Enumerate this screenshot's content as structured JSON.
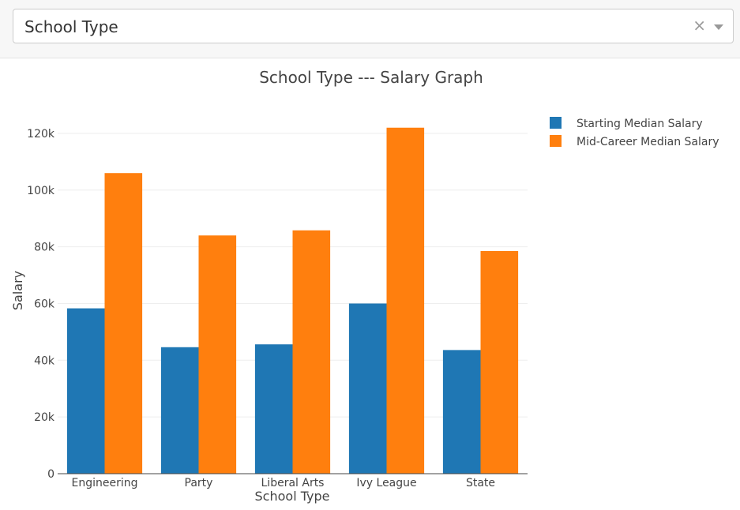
{
  "dropdown": {
    "selected": "School Type"
  },
  "chart_data": {
    "type": "bar",
    "title": "School Type --- Salary Graph",
    "xlabel": "School Type",
    "ylabel": "Salary",
    "categories": [
      "Engineering",
      "Party",
      "Liberal Arts",
      "Ivy League",
      "State"
    ],
    "series": [
      {
        "name": "Starting Median Salary",
        "color": "#1f77b4",
        "values": [
          58300,
          44600,
          45600,
          60000,
          43600
        ]
      },
      {
        "name": "Mid-Career Median Salary",
        "color": "#ff7f0e",
        "values": [
          106000,
          84000,
          85800,
          122000,
          78500
        ]
      }
    ],
    "ylim": [
      0,
      130000
    ],
    "yticks": [
      0,
      20000,
      40000,
      60000,
      80000,
      100000,
      120000
    ],
    "ytick_labels": [
      "0",
      "20k",
      "40k",
      "60k",
      "80k",
      "100k",
      "120k"
    ],
    "grid": true,
    "legend": "top-right"
  }
}
